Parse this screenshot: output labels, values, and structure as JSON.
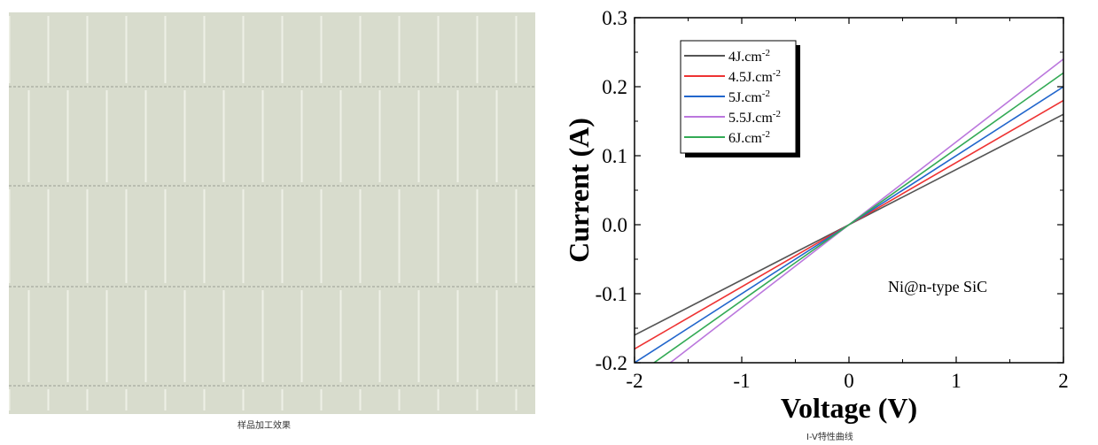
{
  "left_panel": {
    "caption": "样品加工效果",
    "photo_desc_colors": {
      "base": "#d8dccd",
      "line": "#eef0e6",
      "shadow": "#b9bdb0"
    }
  },
  "right_panel": {
    "caption": "I-V特性曲线"
  },
  "chart_data": {
    "type": "line",
    "xlabel": "Voltage (V)",
    "ylabel": "Current (A)",
    "xlim": [
      -2,
      2
    ],
    "ylim": [
      -0.2,
      0.3
    ],
    "xticks": [
      "-2",
      "-1",
      "0",
      "1",
      "2"
    ],
    "yticks": [
      "-0.2",
      "-0.1",
      "0.0",
      "0.1",
      "0.2",
      "0.3"
    ],
    "annotation": "Ni@n-type SiC",
    "legend_position": "top-left",
    "grid": false,
    "series": [
      {
        "name_base": "4J.cm",
        "name_sup": "-2",
        "color": "#555555",
        "x": [
          -2,
          2
        ],
        "y": [
          -0.16,
          0.16
        ]
      },
      {
        "name_base": "4.5J.cm",
        "name_sup": "-2",
        "color": "#ee3333",
        "x": [
          -2,
          2
        ],
        "y": [
          -0.18,
          0.18
        ]
      },
      {
        "name_base": "5J.cm",
        "name_sup": "-2",
        "color": "#2266cc",
        "x": [
          -2,
          2
        ],
        "y": [
          -0.2,
          0.2
        ]
      },
      {
        "name_base": "5.5J.cm",
        "name_sup": "-2",
        "color": "#bb77dd",
        "x": [
          -2,
          2
        ],
        "y": [
          -0.24,
          0.24
        ]
      },
      {
        "name_base": "6J.cm",
        "name_sup": "-2",
        "color": "#33aa55",
        "x": [
          -2,
          2
        ],
        "y": [
          -0.22,
          0.22
        ]
      }
    ]
  }
}
